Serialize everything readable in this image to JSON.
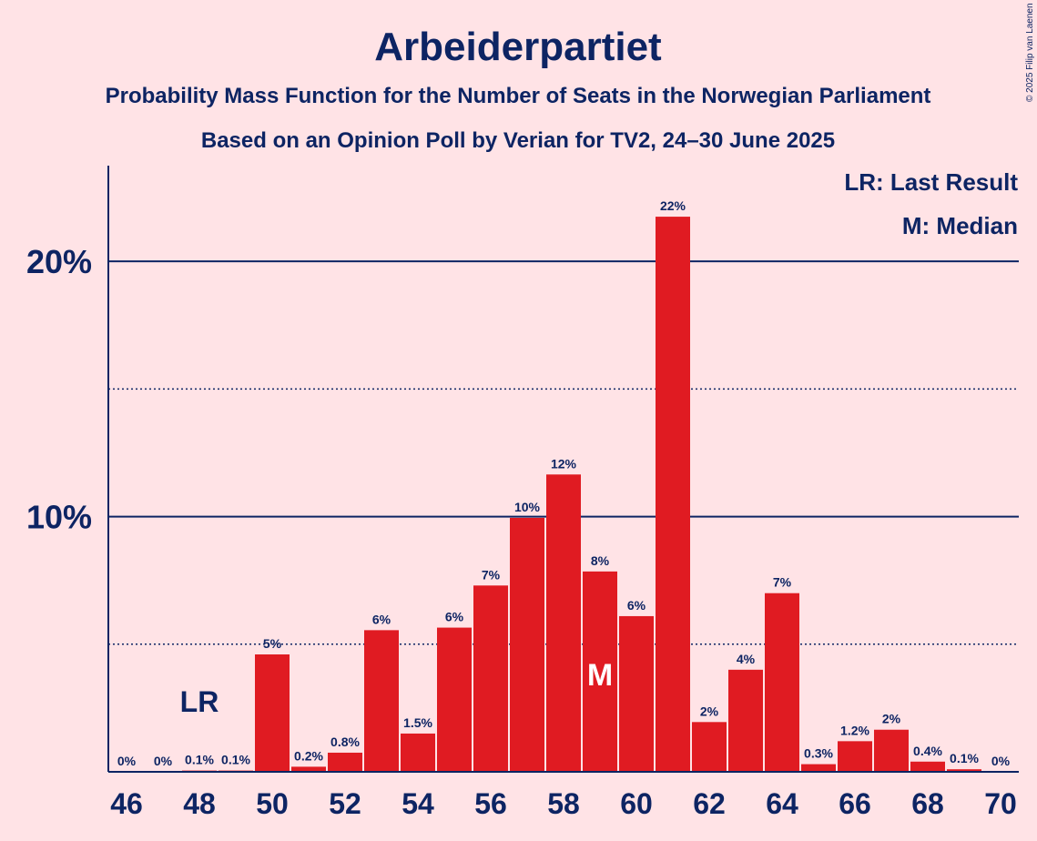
{
  "chart_data": {
    "type": "bar",
    "title": "Arbeiderpartiet",
    "subtitle_1": "Probability Mass Function for the Number of Seats in the Norwegian Parliament",
    "subtitle_2": "Based on an Opinion Poll by Verian for TV2, 24–30 June 2025",
    "copyright": "© 2025 Filip van Laenen",
    "legend": [
      "LR: Last Result",
      "M: Median"
    ],
    "legend_position": "top-right",
    "x_ticks": [
      "46",
      "48",
      "50",
      "52",
      "54",
      "56",
      "58",
      "60",
      "62",
      "64",
      "66",
      "68",
      "70"
    ],
    "y_ticks": [
      {
        "value": 10,
        "label": "10%"
      },
      {
        "value": 20,
        "label": "20%"
      }
    ],
    "dotted_gridlines": [
      5,
      15
    ],
    "ylim": [
      0,
      23.75
    ],
    "xlim": [
      45.5,
      70.5
    ],
    "seats": [
      46,
      47,
      48,
      49,
      50,
      51,
      52,
      53,
      54,
      55,
      56,
      57,
      58,
      59,
      60,
      61,
      62,
      63,
      64,
      65,
      66,
      67,
      68,
      69,
      70
    ],
    "values": [
      0,
      0,
      0.05,
      0.05,
      4.6,
      0.2,
      0.75,
      5.55,
      1.5,
      5.65,
      7.3,
      9.95,
      11.65,
      7.85,
      6.1,
      21.75,
      1.95,
      4.0,
      7.0,
      0.3,
      1.2,
      1.65,
      0.4,
      0.1,
      0
    ],
    "labels": [
      "0%",
      "0%",
      "0.1%",
      "0.1%",
      "5%",
      "0.2%",
      "0.8%",
      "6%",
      "1.5%",
      "6%",
      "7%",
      "10%",
      "12%",
      "8%",
      "6%",
      "22%",
      "2%",
      "4%",
      "7%",
      "0.3%",
      "1.2%",
      "2%",
      "0.4%",
      "0.1%",
      "0%"
    ],
    "last_result": {
      "seat": 48,
      "label": "LR"
    },
    "median": {
      "seat": 59,
      "label": "M"
    },
    "colors": {
      "bar": "#e01b22",
      "text": "#0d2463",
      "background": "#ffe3e6"
    }
  }
}
